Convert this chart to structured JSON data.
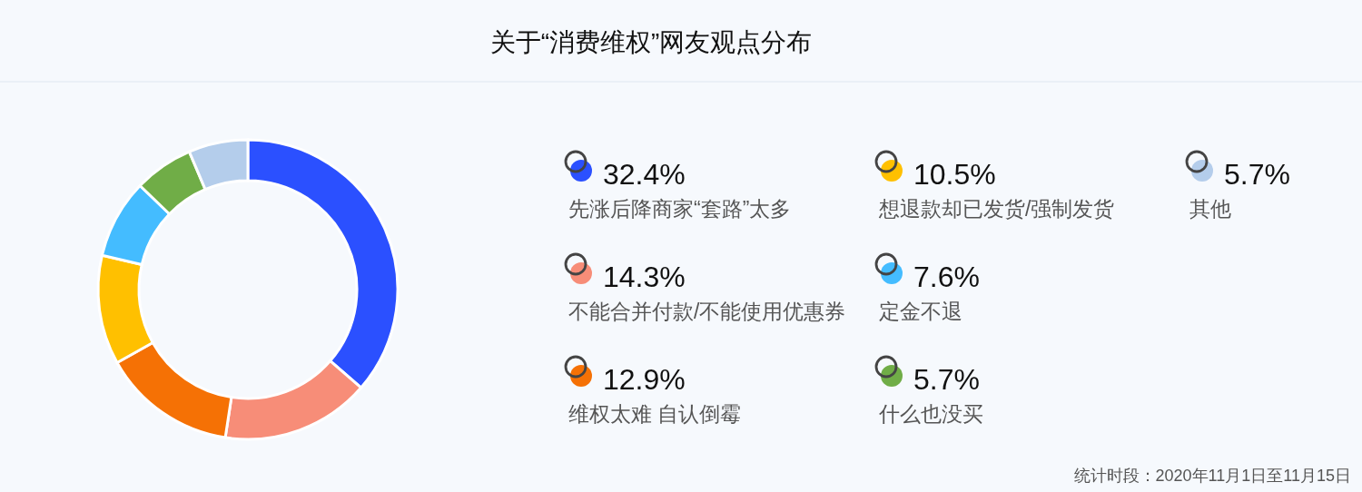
{
  "chart_data": {
    "type": "donut",
    "title": "关于“消费维权”网友观点分布",
    "categories": [
      "先涨后降商家“套路”太多",
      "不能合并付款/不能使用优惠券",
      "维权太难 自认倒霉",
      "想退款却已发货/强制发货",
      "定金不退",
      "什么也没买",
      "其他"
    ],
    "values": [
      32.4,
      14.3,
      12.9,
      10.5,
      7.6,
      5.7,
      5.7
    ],
    "value_labels": [
      "32.4%",
      "14.3%",
      "12.9%",
      "10.5%",
      "7.6%",
      "5.7%",
      "5.7%"
    ],
    "colors": [
      "#2b50ff",
      "#f78d78",
      "#f57105",
      "#ffc000",
      "#44bcff",
      "#70ad47",
      "#b4cdeb"
    ],
    "legend": "right",
    "annotations": [
      "统计时段：2020年11月1日至11月15日"
    ]
  }
}
